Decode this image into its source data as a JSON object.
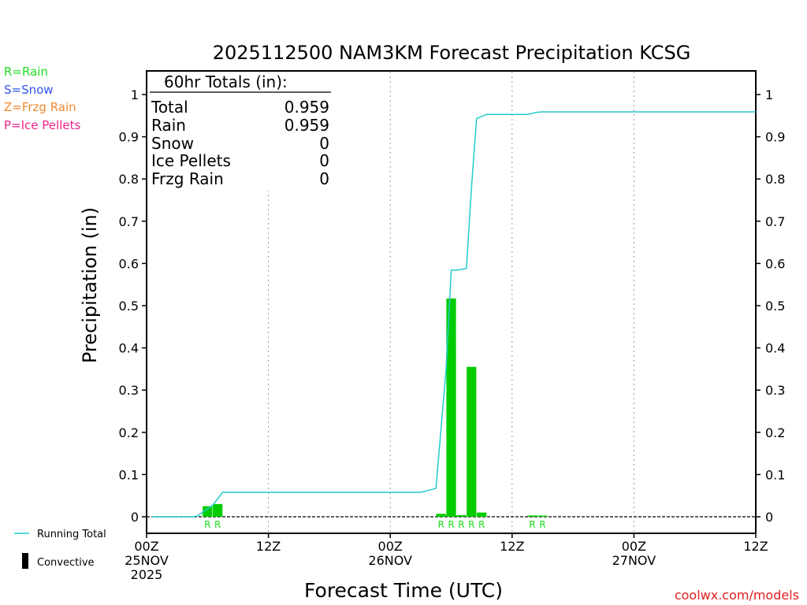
{
  "colors": {
    "rain": "#22dd22",
    "snow": "#3355ee",
    "frzg_rain": "#f08830",
    "ice_pellets": "#ee2288",
    "bars": "#00cc00",
    "running_total": "#22cccc",
    "axis": "#000000",
    "credit": "#e02020"
  },
  "legend_types": [
    {
      "label": "R=Rain",
      "color_key": "rain"
    },
    {
      "label": "S=Snow",
      "color_key": "snow"
    },
    {
      "label": "Z=Frzg Rain",
      "color_key": "frzg_rain"
    },
    {
      "label": "P=Ice Pellets",
      "color_key": "ice_pellets"
    }
  ],
  "series_legend": {
    "running_total": "Running Total",
    "convective": "Convective"
  },
  "totals_box": {
    "header": "60hr Totals (in):",
    "rows": [
      {
        "label": "Total",
        "value": "0.959"
      },
      {
        "label": "Rain",
        "value": "0.959"
      },
      {
        "label": "Snow",
        "value": "0"
      },
      {
        "label": "Ice Pellets",
        "value": "0"
      },
      {
        "label": "Frzg Rain",
        "value": "0"
      }
    ]
  },
  "credit": "coolwx.com/models",
  "chart_data": {
    "type": "bar",
    "title": "2025112500 NAM3KM Forecast Precipitation KCSG",
    "xlabel": "Forecast Time (UTC)",
    "ylabel": "Precipitation (in)",
    "xlim": [
      0,
      60
    ],
    "ylim": [
      0,
      1.0
    ],
    "yticks": [
      0,
      0.1,
      0.2,
      0.3,
      0.4,
      0.5,
      0.6,
      0.7,
      0.8,
      0.9,
      1
    ],
    "ytick_labels": [
      "0",
      "0.1",
      "0.2",
      "0.3",
      "0.4",
      "0.5",
      "0.6",
      "0.7",
      "0.8",
      "0.9",
      "1"
    ],
    "xticks": [
      {
        "hour": 0,
        "lines": [
          "00Z",
          "25NOV",
          "2025"
        ]
      },
      {
        "hour": 12,
        "lines": [
          "12Z"
        ]
      },
      {
        "hour": 24,
        "lines": [
          "00Z",
          "26NOV"
        ]
      },
      {
        "hour": 36,
        "lines": [
          "12Z"
        ]
      },
      {
        "hour": 48,
        "lines": [
          "00Z",
          "27NOV"
        ]
      },
      {
        "hour": 60,
        "lines": [
          "12Z"
        ]
      }
    ],
    "bars": [
      {
        "hour": 6,
        "value": 0.025,
        "type": "R"
      },
      {
        "hour": 7,
        "value": 0.03,
        "type": "R"
      },
      {
        "hour": 29,
        "value": 0.007,
        "type": "R"
      },
      {
        "hour": 30,
        "value": 0.517,
        "type": "R"
      },
      {
        "hour": 31,
        "value": 0.004,
        "type": "R"
      },
      {
        "hour": 32,
        "value": 0.355,
        "type": "R"
      },
      {
        "hour": 33,
        "value": 0.01,
        "type": "R"
      },
      {
        "hour": 38,
        "value": 0.003,
        "type": "R"
      },
      {
        "hour": 39,
        "value": 0.001,
        "type": "R"
      }
    ],
    "running_total": {
      "hours": [
        0.5,
        4.5,
        5,
        6.5,
        7.5,
        10,
        20,
        27,
        28.5,
        29.5,
        30,
        30.5,
        31.5,
        32,
        32.5,
        33.5,
        34.5,
        37.5,
        38.5,
        39,
        48,
        60
      ],
      "values": [
        0,
        0,
        0.002,
        0.027,
        0.058,
        0.058,
        0.058,
        0.058,
        0.067,
        0.35,
        0.584,
        0.584,
        0.588,
        0.78,
        0.943,
        0.953,
        0.953,
        0.953,
        0.958,
        0.959,
        0.959,
        0.959
      ]
    },
    "grid": "dotted vertical at 12Z/00Z"
  }
}
